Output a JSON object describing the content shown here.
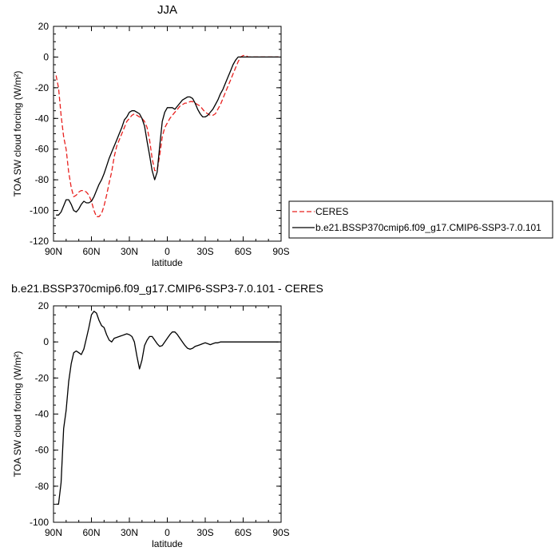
{
  "chart_data": [
    {
      "type": "line",
      "title": "JJA",
      "xlabel": "latitude",
      "ylabel": "TOA SW cloud forcing (W/m²)",
      "xlim": [
        90,
        -90
      ],
      "ylim": [
        -120,
        20
      ],
      "x_ticks": [
        90,
        60,
        30,
        0,
        -30,
        -60,
        -90
      ],
      "x_tick_labels": [
        "90N",
        "60N",
        "30N",
        "0",
        "30S",
        "60S",
        "90S"
      ],
      "y_ticks": [
        -120,
        -100,
        -80,
        -60,
        -40,
        -20,
        0,
        20
      ],
      "y_tick_labels": [
        "-120",
        "-100",
        "-80",
        "-60",
        "-40",
        "-20",
        "0",
        "20"
      ],
      "legend_position": "right",
      "series": [
        {
          "name": "CERES",
          "color": "#e8201e",
          "dash": true,
          "x": [
            88,
            86,
            84,
            82,
            80,
            78,
            76,
            74,
            72,
            70,
            68,
            66,
            64,
            62,
            60,
            58,
            56,
            54,
            52,
            50,
            48,
            46,
            44,
            42,
            40,
            38,
            36,
            34,
            32,
            30,
            28,
            26,
            24,
            22,
            20,
            18,
            16,
            14,
            12,
            10,
            8,
            6,
            4,
            2,
            0,
            -2,
            -4,
            -6,
            -8,
            -10,
            -12,
            -14,
            -16,
            -18,
            -20,
            -22,
            -24,
            -26,
            -28,
            -30,
            -32,
            -34,
            -36,
            -38,
            -40,
            -42,
            -44,
            -46,
            -48,
            -50,
            -52,
            -54,
            -56,
            -58,
            -60,
            -62,
            -64,
            -66,
            -68,
            -70,
            -72,
            -74,
            -76,
            -78,
            -80,
            -82,
            -84,
            -86,
            -88
          ],
          "y": [
            -12,
            -20,
            -38,
            -52,
            -60,
            -75,
            -85,
            -91,
            -90,
            -88,
            -87,
            -87,
            -88,
            -90,
            -94,
            -100,
            -104,
            -104,
            -102,
            -97,
            -90,
            -82,
            -75,
            -65,
            -58,
            -54,
            -50,
            -46,
            -42,
            -40,
            -38,
            -37,
            -38,
            -39,
            -40,
            -42,
            -46,
            -54,
            -66,
            -74,
            -74,
            -64,
            -52,
            -46,
            -43,
            -40,
            -38,
            -36,
            -34,
            -32,
            -31,
            -30,
            -30,
            -29,
            -29,
            -30,
            -31,
            -32,
            -34,
            -36,
            -37,
            -38,
            -38,
            -37,
            -34,
            -31,
            -27,
            -23,
            -19,
            -15,
            -11,
            -7,
            -3,
            0,
            1,
            1,
            0,
            0,
            0,
            0,
            0,
            0,
            0,
            0,
            0,
            0,
            0,
            0,
            0
          ]
        },
        {
          "name": "b.e21.BSSP370cmip6.f09_g17.CMIP6-SSP3-7.0.101",
          "color": "#000000",
          "dash": false,
          "x": [
            88,
            86,
            84,
            82,
            80,
            78,
            76,
            74,
            72,
            70,
            68,
            66,
            64,
            62,
            60,
            58,
            56,
            54,
            52,
            50,
            48,
            46,
            44,
            42,
            40,
            38,
            36,
            34,
            32,
            30,
            28,
            26,
            24,
            22,
            20,
            18,
            16,
            14,
            12,
            10,
            8,
            6,
            4,
            2,
            0,
            -2,
            -4,
            -6,
            -8,
            -10,
            -12,
            -14,
            -16,
            -18,
            -20,
            -22,
            -24,
            -26,
            -28,
            -30,
            -32,
            -34,
            -36,
            -38,
            -40,
            -42,
            -44,
            -46,
            -48,
            -50,
            -52,
            -54,
            -56,
            -58,
            -60,
            -62,
            -64,
            -66,
            -68,
            -70,
            -72,
            -74,
            -76,
            -78,
            -80,
            -82,
            -84,
            -86,
            -88
          ],
          "y": [
            -103,
            -103,
            -101,
            -97,
            -93,
            -93,
            -96,
            -100,
            -101,
            -99,
            -96,
            -94,
            -95,
            -95,
            -94,
            -91,
            -87,
            -83,
            -80,
            -76,
            -71,
            -66,
            -62,
            -58,
            -54,
            -50,
            -46,
            -41,
            -39,
            -36,
            -35,
            -35,
            -36,
            -37,
            -40,
            -45,
            -55,
            -64,
            -74,
            -80,
            -75,
            -58,
            -42,
            -36,
            -33,
            -33,
            -33,
            -34,
            -32,
            -30,
            -28,
            -27,
            -26,
            -26,
            -27,
            -30,
            -34,
            -37,
            -39,
            -39,
            -38,
            -36,
            -34,
            -31,
            -28,
            -24,
            -21,
            -17,
            -13,
            -9,
            -5,
            -2,
            0,
            0,
            0,
            0,
            0,
            0,
            0,
            0,
            0,
            0,
            0,
            0,
            0,
            0,
            0,
            0,
            0
          ]
        }
      ]
    },
    {
      "type": "line",
      "title": "b.e21.BSSP370cmip6.f09_g17.CMIP6-SSP3-7.0.101 - CERES",
      "xlabel": "latitude",
      "ylabel": "TOA SW cloud forcing (W/m²)",
      "xlim": [
        90,
        -90
      ],
      "ylim": [
        -100,
        20
      ],
      "x_ticks": [
        90,
        60,
        30,
        0,
        -30,
        -60,
        -90
      ],
      "x_tick_labels": [
        "90N",
        "60N",
        "30N",
        "0",
        "30S",
        "60S",
        "90S"
      ],
      "y_ticks": [
        -100,
        -80,
        -60,
        -40,
        -20,
        0,
        20
      ],
      "y_tick_labels": [
        "-100",
        "-80",
        "-60",
        "-40",
        "-20",
        "0",
        "20"
      ],
      "series": [
        {
          "color": "#000000",
          "dash": false,
          "x": [
            88,
            86,
            84,
            82,
            80,
            78,
            76,
            74,
            72,
            70,
            68,
            66,
            64,
            62,
            60,
            58,
            56,
            54,
            52,
            50,
            48,
            46,
            44,
            42,
            40,
            38,
            36,
            34,
            32,
            30,
            28,
            26,
            24,
            22,
            20,
            18,
            16,
            14,
            12,
            10,
            8,
            6,
            4,
            2,
            0,
            -2,
            -4,
            -6,
            -8,
            -10,
            -12,
            -14,
            -16,
            -18,
            -20,
            -22,
            -24,
            -26,
            -28,
            -30,
            -32,
            -34,
            -36,
            -38,
            -40,
            -42,
            -44,
            -46,
            -48,
            -50,
            -52,
            -54,
            -56,
            -58,
            -60,
            -62,
            -64,
            -66,
            -68,
            -70,
            -72,
            -74,
            -76,
            -78,
            -80,
            -82,
            -84,
            -86,
            -88
          ],
          "y": [
            -90,
            -90,
            -78,
            -48,
            -38,
            -22,
            -12,
            -6,
            -5,
            -6,
            -7,
            -4,
            2,
            8,
            15,
            17,
            16,
            12,
            9,
            8,
            4,
            1,
            0,
            2,
            2.5,
            3,
            3.5,
            4,
            4.5,
            4,
            3,
            0,
            -8,
            -15,
            -10,
            -2,
            1,
            3,
            3,
            1,
            -1,
            -2.5,
            -2,
            0,
            2,
            4,
            5.5,
            5.5,
            4,
            2,
            0,
            -2,
            -3.5,
            -4,
            -3.5,
            -2.5,
            -2,
            -1.5,
            -1,
            -0.5,
            -1,
            -1.5,
            -1,
            -0.5,
            -0.5,
            0,
            0,
            0,
            0,
            0,
            0,
            0,
            0,
            0,
            0,
            0,
            0,
            0,
            0,
            0,
            0,
            0,
            0,
            0,
            0,
            0,
            0,
            0,
            0
          ]
        }
      ]
    }
  ]
}
